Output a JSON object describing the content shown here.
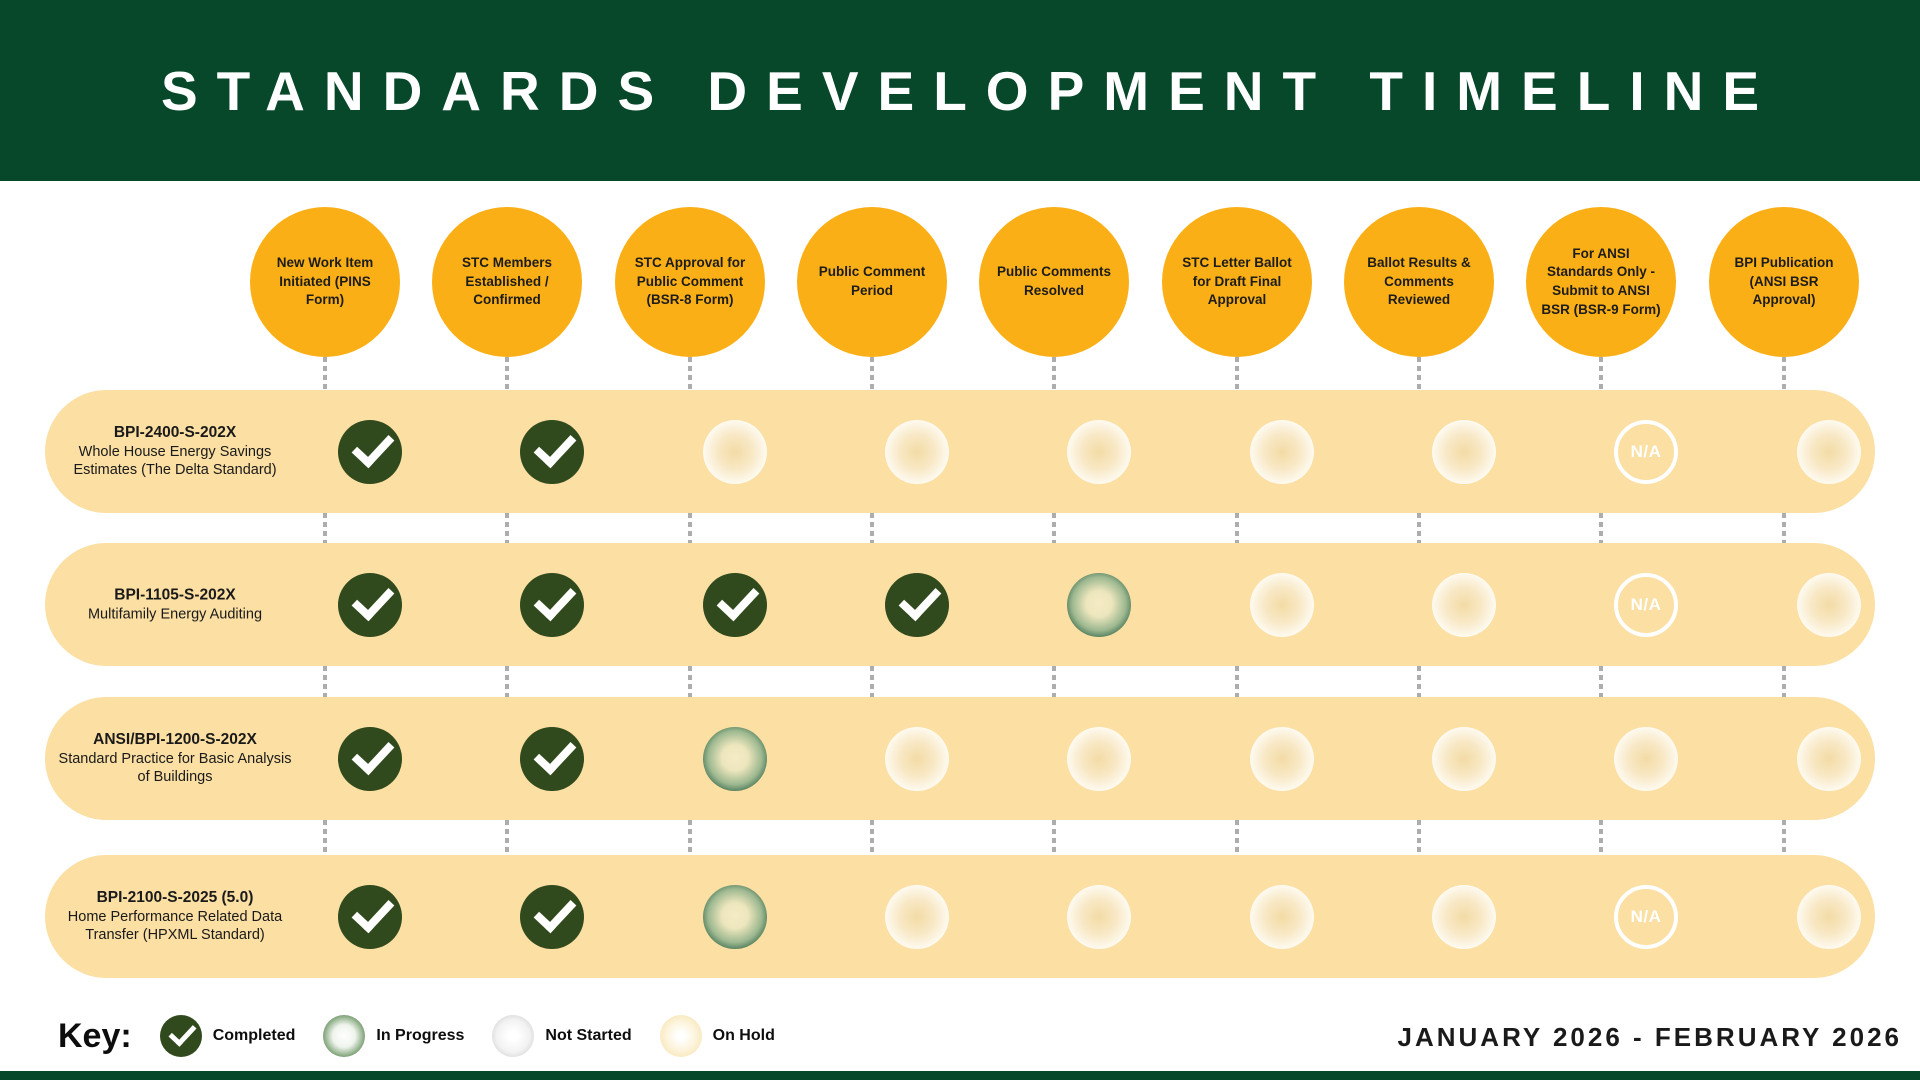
{
  "header": {
    "title": "STANDARDS DEVELOPMENT TIMELINE"
  },
  "stages": [
    "New Work Item Initiated (PINS Form)",
    "STC Members Established / Confirmed",
    "STC Approval for Public Comment (BSR-8 Form)",
    "Public Comment Period",
    "Public Comments Resolved",
    "STC Letter Ballot for Draft Final Approval",
    "Ballot Results & Comments Reviewed",
    "For ANSI Standards Only - Submit to ANSI BSR (BSR-9 Form)",
    "BPI Publication (ANSI BSR Approval)"
  ],
  "rows": [
    {
      "code": "BPI-2400-S-202X",
      "name": "Whole House Energy Savings Estimates (The Delta Standard)",
      "cells": [
        "completed",
        "completed",
        "not-started",
        "not-started",
        "not-started",
        "not-started",
        "not-started",
        "na",
        "not-started"
      ]
    },
    {
      "code": "BPI-1105-S-202X",
      "name": "Multifamily Energy Auditing",
      "cells": [
        "completed",
        "completed",
        "completed",
        "completed",
        "in-progress",
        "not-started",
        "not-started",
        "na",
        "not-started"
      ]
    },
    {
      "code": "ANSI/BPI-1200-S-202X",
      "name": "Standard Practice for Basic Analysis of Buildings",
      "cells": [
        "completed",
        "completed",
        "in-progress",
        "not-started",
        "not-started",
        "not-started",
        "not-started",
        "not-started",
        "not-started"
      ]
    },
    {
      "code": "BPI-2100-S-2025 (5.0)",
      "name": "Home Performance Related Data Transfer (HPXML Standard)",
      "cells": [
        "completed",
        "completed",
        "in-progress",
        "not-started",
        "not-started",
        "not-started",
        "not-started",
        "na",
        "not-started"
      ]
    }
  ],
  "na_label": "N/A",
  "key": {
    "label": "Key:",
    "items": [
      {
        "status": "completed",
        "label": "Completed"
      },
      {
        "status": "in-progress",
        "label": "In Progress"
      },
      {
        "status": "not-started",
        "label": "Not Started"
      },
      {
        "status": "on-hold",
        "label": "On Hold"
      }
    ]
  },
  "footer": {
    "date_range": "JANUARY 2026 - FEBRUARY 2026"
  },
  "colors": {
    "header_green": "#07482B",
    "stage_orange": "#FBAF17",
    "row_band_yellow": "#FBDFA3",
    "completed_green": "#304A1D",
    "in_progress_rim_green": "#0F3F2A",
    "connector_gray": "#ADADAD"
  }
}
